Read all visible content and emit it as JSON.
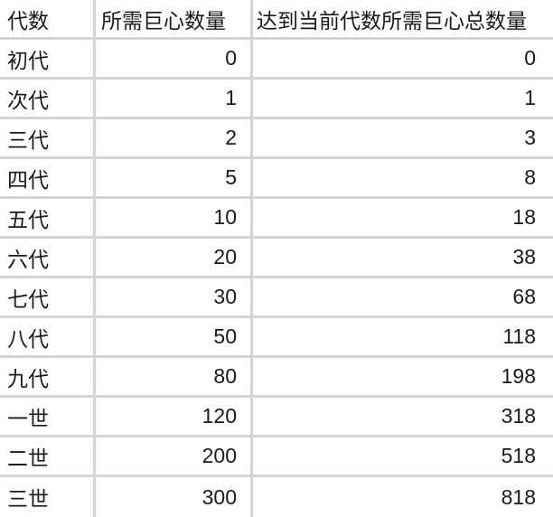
{
  "colors": {
    "background": "#ffffff",
    "grid_line": "#d5d5d5",
    "text": "#1a1a1a"
  },
  "chart_data": {
    "type": "table",
    "columns": [
      "代数",
      "所需巨心数量",
      "达到当前代数所需巨心总数量"
    ],
    "rows": [
      [
        "初代",
        "0",
        "0"
      ],
      [
        "次代",
        "1",
        "1"
      ],
      [
        "三代",
        "2",
        "3"
      ],
      [
        "四代",
        "5",
        "8"
      ],
      [
        "五代",
        "10",
        "18"
      ],
      [
        "六代",
        "20",
        "38"
      ],
      [
        "七代",
        "30",
        "68"
      ],
      [
        "八代",
        "50",
        "118"
      ],
      [
        "九代",
        "80",
        "198"
      ],
      [
        "一世",
        "120",
        "318"
      ],
      [
        "二世",
        "200",
        "518"
      ],
      [
        "三世",
        "300",
        "818"
      ]
    ]
  }
}
